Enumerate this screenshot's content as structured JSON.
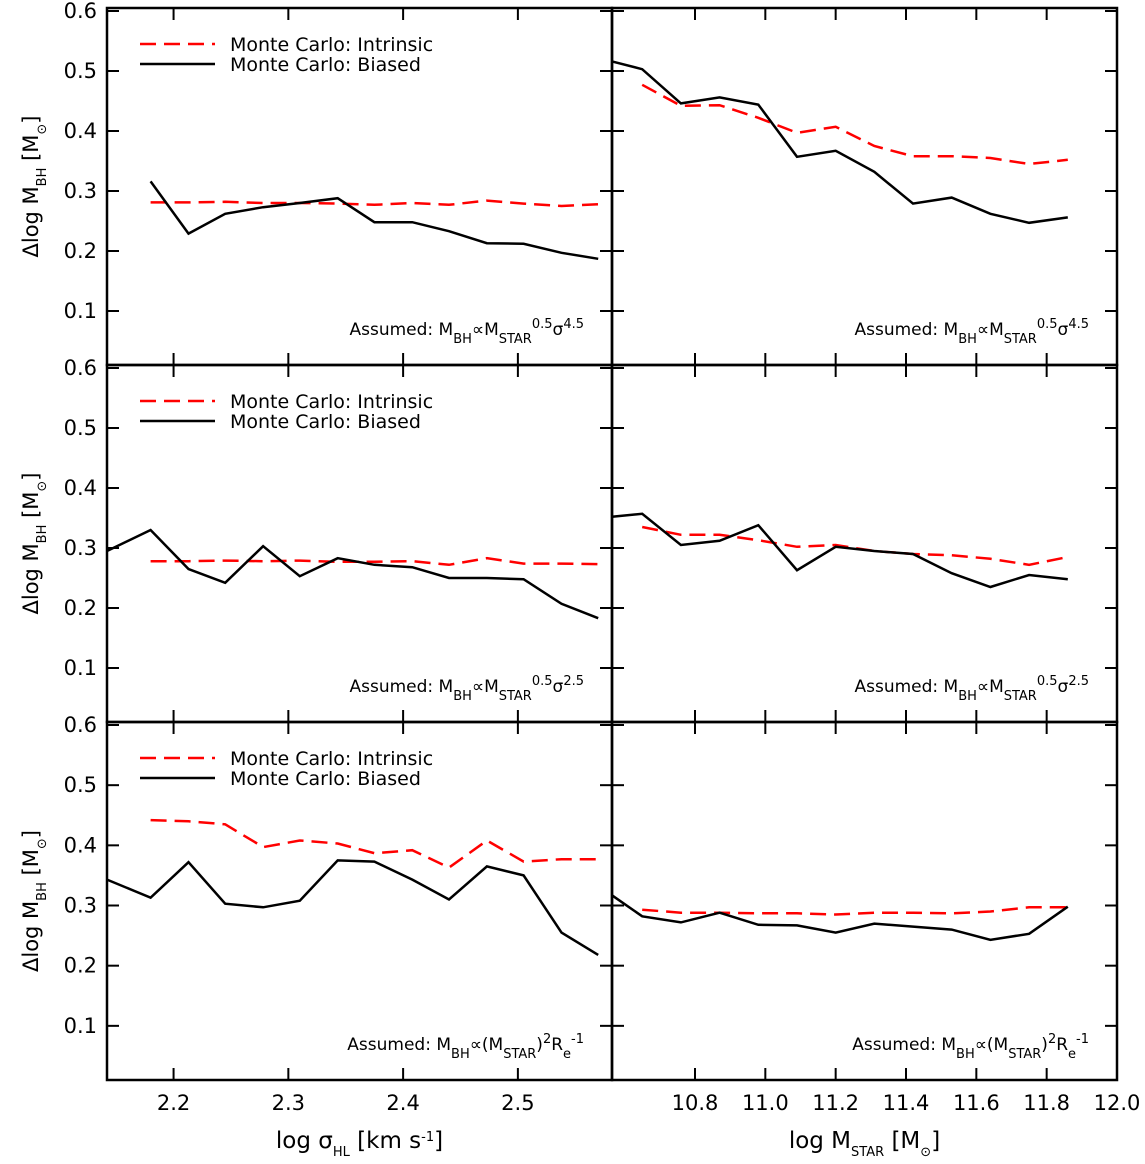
{
  "chart_data": [
    {
      "type": "line",
      "legend": "upper left",
      "ytick_labels": true,
      "xtick_labels": false,
      "ylabel": [
        {
          "text": "Δlog M"
        },
        {
          "text": "BH",
          "shift": "sub"
        },
        {
          "text": " [M"
        },
        {
          "text": "⊙",
          "shift": "sub"
        },
        {
          "text": "]"
        }
      ],
      "xlim": [
        2.142,
        2.582
      ],
      "xticks": [
        2.2,
        2.3,
        2.4,
        2.5
      ],
      "ylim": [
        0.01,
        0.605
      ],
      "yticks": [
        0.1,
        0.2,
        0.3,
        0.4,
        0.5,
        0.6
      ],
      "x": [
        2.142,
        2.18,
        2.213,
        2.245,
        2.278,
        2.31,
        2.343,
        2.375,
        2.408,
        2.44,
        2.473,
        2.505,
        2.538,
        2.57
      ],
      "series": [
        {
          "name": "Monte Carlo: Intrinsic",
          "color": "#ff0000",
          "linestyle": "dashed",
          "values": [
            null,
            0.281,
            0.281,
            0.282,
            0.28,
            0.28,
            0.279,
            0.277,
            0.28,
            0.277,
            0.284,
            0.279,
            0.275,
            0.278
          ]
        },
        {
          "name": "Monte Carlo: Biased",
          "color": "#000000",
          "linestyle": "solid",
          "values": [
            null,
            0.316,
            0.229,
            0.262,
            0.273,
            0.28,
            0.288,
            0.248,
            0.248,
            0.233,
            0.213,
            0.212,
            0.197,
            0.187
          ]
        }
      ],
      "annotation": [
        {
          "text": "Assumed: M"
        },
        {
          "text": "BH",
          "shift": "sub"
        },
        {
          "text": "∝M"
        },
        {
          "text": "STAR",
          "shift": "sub"
        },
        {
          "text": "0.5",
          "shift": "super"
        },
        {
          "text": "σ"
        },
        {
          "text": "4.5",
          "shift": "super"
        }
      ]
    },
    {
      "type": "line",
      "ytick_labels": false,
      "xtick_labels": false,
      "xlim": [
        10.564,
        12.0
      ],
      "xticks": [
        10.8,
        {
          "value": 11,
          "label": "11.0"
        },
        11.2,
        11.4,
        11.6,
        11.8,
        {
          "value": 12,
          "label": "12.0"
        }
      ],
      "ylim": [
        0.01,
        0.605
      ],
      "yticks": [
        0.1,
        0.2,
        0.3,
        0.4,
        0.5,
        0.6
      ],
      "x": [
        10.564,
        10.65,
        10.76,
        10.87,
        10.98,
        11.09,
        11.2,
        11.31,
        11.42,
        11.53,
        11.64,
        11.75,
        11.86
      ],
      "series": [
        {
          "color": "#ff0000",
          "linestyle": "dashed",
          "values": [
            null,
            0.477,
            0.442,
            0.443,
            0.422,
            0.397,
            0.407,
            0.375,
            0.358,
            0.358,
            0.355,
            0.345,
            0.352
          ]
        },
        {
          "color": "#000000",
          "linestyle": "solid",
          "values": [
            0.516,
            0.503,
            0.446,
            0.456,
            0.444,
            0.357,
            0.367,
            0.332,
            0.279,
            0.289,
            0.262,
            0.247,
            0.256
          ]
        }
      ],
      "annotation": [
        {
          "text": "Assumed: M"
        },
        {
          "text": "BH",
          "shift": "sub"
        },
        {
          "text": "∝M"
        },
        {
          "text": "STAR",
          "shift": "sub"
        },
        {
          "text": "0.5",
          "shift": "super"
        },
        {
          "text": "σ"
        },
        {
          "text": "4.5",
          "shift": "super"
        }
      ]
    },
    {
      "type": "line",
      "legend": "upper left",
      "ytick_labels": true,
      "xtick_labels": false,
      "ylabel": [
        {
          "text": "Δlog M"
        },
        {
          "text": "BH",
          "shift": "sub"
        },
        {
          "text": " [M"
        },
        {
          "text": "⊙",
          "shift": "sub"
        },
        {
          "text": "]"
        }
      ],
      "xlim": [
        2.142,
        2.582
      ],
      "xticks": [
        2.2,
        2.3,
        2.4,
        2.5
      ],
      "ylim": [
        0.01,
        0.605
      ],
      "yticks": [
        0.1,
        0.2,
        0.3,
        0.4,
        0.5,
        0.6
      ],
      "x": [
        2.142,
        2.18,
        2.213,
        2.245,
        2.278,
        2.31,
        2.343,
        2.375,
        2.408,
        2.44,
        2.473,
        2.505,
        2.538,
        2.57
      ],
      "series": [
        {
          "name": "Monte Carlo: Intrinsic",
          "color": "#ff0000",
          "linestyle": "dashed",
          "values": [
            null,
            0.278,
            0.278,
            0.279,
            0.278,
            0.279,
            0.277,
            0.277,
            0.278,
            0.272,
            0.283,
            0.274,
            0.274,
            0.273
          ]
        },
        {
          "name": "Monte Carlo: Biased",
          "color": "#000000",
          "linestyle": "solid",
          "values": [
            0.295,
            0.33,
            0.265,
            0.242,
            0.303,
            0.253,
            0.283,
            0.272,
            0.268,
            0.25,
            0.25,
            0.248,
            0.207,
            0.183
          ]
        }
      ],
      "annotation": [
        {
          "text": "Assumed: M"
        },
        {
          "text": "BH",
          "shift": "sub"
        },
        {
          "text": "∝M"
        },
        {
          "text": "STAR",
          "shift": "sub"
        },
        {
          "text": "0.5",
          "shift": "super"
        },
        {
          "text": "σ"
        },
        {
          "text": "2.5",
          "shift": "super"
        }
      ]
    },
    {
      "type": "line",
      "ytick_labels": false,
      "xtick_labels": false,
      "xlim": [
        10.564,
        12.0
      ],
      "xticks": [
        10.8,
        {
          "value": 11,
          "label": "11.0"
        },
        11.2,
        11.4,
        11.6,
        11.8,
        {
          "value": 12,
          "label": "12.0"
        }
      ],
      "ylim": [
        0.01,
        0.605
      ],
      "yticks": [
        0.1,
        0.2,
        0.3,
        0.4,
        0.5,
        0.6
      ],
      "x": [
        10.564,
        10.65,
        10.76,
        10.87,
        10.98,
        11.09,
        11.2,
        11.31,
        11.42,
        11.53,
        11.64,
        11.75,
        11.86
      ],
      "series": [
        {
          "color": "#ff0000",
          "linestyle": "dashed",
          "values": [
            null,
            0.335,
            0.322,
            0.322,
            0.313,
            0.302,
            0.305,
            0.295,
            0.29,
            0.288,
            0.282,
            0.272,
            0.285
          ]
        },
        {
          "color": "#000000",
          "linestyle": "solid",
          "values": [
            0.352,
            0.357,
            0.305,
            0.312,
            0.338,
            0.263,
            0.302,
            0.295,
            0.29,
            0.258,
            0.235,
            0.255,
            0.248
          ]
        }
      ],
      "annotation": [
        {
          "text": "Assumed: M"
        },
        {
          "text": "BH",
          "shift": "sub"
        },
        {
          "text": "∝M"
        },
        {
          "text": "STAR",
          "shift": "sub"
        },
        {
          "text": "0.5",
          "shift": "super"
        },
        {
          "text": "σ"
        },
        {
          "text": "2.5",
          "shift": "super"
        }
      ]
    },
    {
      "type": "line",
      "legend": "upper left",
      "ytick_labels": true,
      "xtick_labels": true,
      "ylabel": [
        {
          "text": "Δlog M"
        },
        {
          "text": "BH",
          "shift": "sub"
        },
        {
          "text": " [M"
        },
        {
          "text": "⊙",
          "shift": "sub"
        },
        {
          "text": "]"
        }
      ],
      "xlabel": [
        {
          "text": "log σ"
        },
        {
          "text": "HL",
          "shift": "sub"
        },
        {
          "text": " [km s"
        },
        {
          "text": "-1",
          "shift": "super"
        },
        {
          "text": "]"
        }
      ],
      "xlim": [
        2.142,
        2.582
      ],
      "xticks": [
        2.2,
        2.3,
        2.4,
        2.5
      ],
      "ylim": [
        0.01,
        0.605
      ],
      "yticks": [
        0.1,
        0.2,
        0.3,
        0.4,
        0.5,
        0.6
      ],
      "x": [
        2.142,
        2.18,
        2.213,
        2.245,
        2.278,
        2.31,
        2.343,
        2.375,
        2.408,
        2.44,
        2.473,
        2.505,
        2.538,
        2.57
      ],
      "series": [
        {
          "name": "Monte Carlo: Intrinsic",
          "color": "#ff0000",
          "linestyle": "dashed",
          "values": [
            null,
            0.442,
            0.44,
            0.435,
            0.397,
            0.408,
            0.403,
            0.387,
            0.392,
            0.363,
            0.408,
            0.373,
            0.377,
            0.377
          ]
        },
        {
          "name": "Monte Carlo: Biased",
          "color": "#000000",
          "linestyle": "solid",
          "values": [
            0.343,
            0.313,
            0.372,
            0.303,
            0.297,
            0.308,
            0.375,
            0.373,
            0.343,
            0.31,
            0.365,
            0.35,
            0.255,
            0.218
          ]
        }
      ],
      "annotation": [
        {
          "text": "Assumed: M"
        },
        {
          "text": "BH",
          "shift": "sub"
        },
        {
          "text": "∝(M"
        },
        {
          "text": "STAR",
          "shift": "sub"
        },
        {
          "text": ")"
        },
        {
          "text": "2",
          "shift": "super"
        },
        {
          "text": "R"
        },
        {
          "text": "e",
          "shift": "sub"
        },
        {
          "text": "-1",
          "shift": "super"
        }
      ]
    },
    {
      "type": "line",
      "ytick_labels": false,
      "xtick_labels": true,
      "xlabel": [
        {
          "text": "log M"
        },
        {
          "text": "STAR",
          "shift": "sub"
        },
        {
          "text": " [M"
        },
        {
          "text": "⊙",
          "shift": "sub"
        },
        {
          "text": "]"
        }
      ],
      "xlim": [
        10.564,
        12.0
      ],
      "xticks": [
        10.8,
        {
          "value": 11,
          "label": "11.0"
        },
        11.2,
        11.4,
        11.6,
        11.8,
        {
          "value": 12,
          "label": "12.0"
        }
      ],
      "ylim": [
        0.01,
        0.605
      ],
      "yticks": [
        0.1,
        0.2,
        0.3,
        0.4,
        0.5,
        0.6
      ],
      "x": [
        10.564,
        10.65,
        10.76,
        10.87,
        10.98,
        11.09,
        11.2,
        11.31,
        11.42,
        11.53,
        11.64,
        11.75,
        11.86
      ],
      "series": [
        {
          "color": "#ff0000",
          "linestyle": "dashed",
          "values": [
            null,
            0.293,
            0.288,
            0.288,
            0.287,
            0.287,
            0.285,
            0.288,
            0.288,
            0.287,
            0.29,
            0.297,
            0.297
          ]
        },
        {
          "color": "#000000",
          "linestyle": "solid",
          "values": [
            0.317,
            0.282,
            0.272,
            0.288,
            0.268,
            0.267,
            0.255,
            0.27,
            0.265,
            0.26,
            0.243,
            0.253,
            0.298
          ]
        }
      ],
      "annotation": [
        {
          "text": "Assumed: M"
        },
        {
          "text": "BH",
          "shift": "sub"
        },
        {
          "text": "∝(M"
        },
        {
          "text": "STAR",
          "shift": "sub"
        },
        {
          "text": ")"
        },
        {
          "text": "2",
          "shift": "super"
        },
        {
          "text": "R"
        },
        {
          "text": "e",
          "shift": "sub"
        },
        {
          "text": "-1",
          "shift": "super"
        }
      ]
    }
  ]
}
